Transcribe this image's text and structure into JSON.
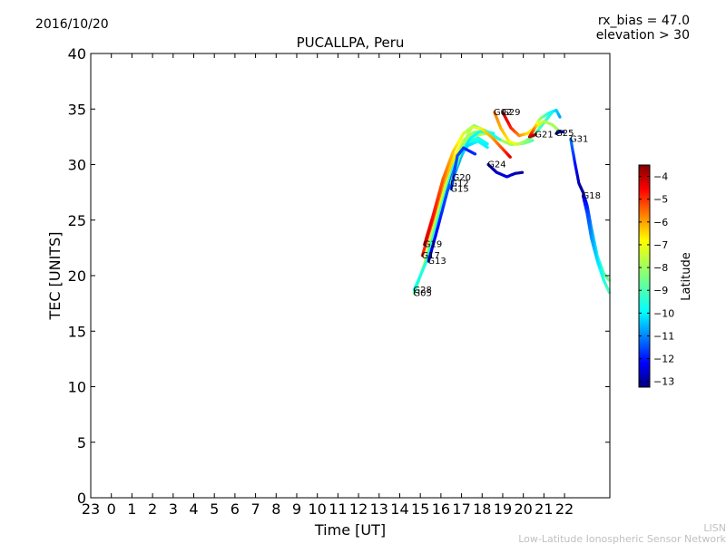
{
  "header": {
    "date": "2016/10/20",
    "rx_bias": "rx_bias = 47.0",
    "elevation": "elevation > 30"
  },
  "credit": {
    "line1": "LISN",
    "line2": "Low-Latitude Ionospheric Sensor Network"
  },
  "chart_data": {
    "type": "scatter",
    "title": "PUCALLPA, Peru",
    "xlabel": "Time [UT]",
    "ylabel": "TEC [UNITS]",
    "xlim": [
      -1,
      24.2
    ],
    "ylim": [
      0,
      40
    ],
    "x_ticks": [
      -1,
      0,
      1,
      2,
      3,
      4,
      5,
      6,
      7,
      8,
      9,
      10,
      11,
      12,
      13,
      14,
      15,
      16,
      17,
      18,
      19,
      20,
      21,
      22
    ],
    "x_tick_labels": [
      "23",
      "0",
      "1",
      "2",
      "3",
      "4",
      "5",
      "6",
      "7",
      "8",
      "9",
      "10",
      "11",
      "12",
      "13",
      "14",
      "15",
      "16",
      "17",
      "18",
      "19",
      "20",
      "21",
      "22"
    ],
    "y_ticks": [
      0,
      5,
      10,
      15,
      20,
      25,
      30,
      35,
      40
    ],
    "y_tick_labels": [
      "0",
      "5",
      "10",
      "15",
      "20",
      "25",
      "30",
      "35",
      "40"
    ],
    "grid": false,
    "colorbar": {
      "label": "Latitude",
      "range": [
        -13.25,
        -3.5
      ],
      "ticks": [
        -4,
        -5,
        -6,
        -7,
        -8,
        -9,
        -10,
        -11,
        -12,
        -13
      ],
      "tick_labels": [
        "−4",
        "−5",
        "−6",
        "−7",
        "−8",
        "−9",
        "−10",
        "−11",
        "−12",
        "−13"
      ],
      "colormap": "jet"
    },
    "series": [
      {
        "name": "G05",
        "points": [
          [
            14.7,
            18.4,
            -8.6
          ],
          [
            15.2,
            21.0,
            -7.9
          ],
          [
            15.8,
            25.5,
            -7.7
          ],
          [
            16.4,
            29.5,
            -7.6
          ],
          [
            17.0,
            31.8,
            -7.6
          ],
          [
            17.6,
            32.6,
            -7.7
          ],
          [
            18.2,
            32.8,
            -7.8
          ],
          [
            18.8,
            32.3,
            -7.9
          ],
          [
            19.4,
            31.8,
            -8.1
          ],
          [
            20.0,
            31.9,
            -8.4
          ],
          [
            20.5,
            32.2,
            -8.8
          ]
        ]
      },
      {
        "name": "G28",
        "points": [
          [
            14.7,
            18.7,
            -9.5
          ],
          [
            15.3,
            21.3,
            -9.2
          ],
          [
            16.0,
            26.0,
            -9.1
          ],
          [
            16.6,
            29.8,
            -9.0
          ],
          [
            17.2,
            31.9,
            -9.1
          ],
          [
            17.8,
            32.4,
            -9.3
          ],
          [
            18.3,
            31.8,
            -9.7
          ]
        ]
      },
      {
        "name": "G17",
        "points": [
          [
            15.1,
            21.8,
            -5.0
          ],
          [
            15.6,
            25.0,
            -5.4
          ],
          [
            16.1,
            28.3,
            -6.1
          ],
          [
            16.6,
            30.5,
            -6.9
          ],
          [
            17.1,
            32.2,
            -7.6
          ],
          [
            17.6,
            32.9,
            -8.3
          ],
          [
            18.1,
            33.0,
            -8.9
          ],
          [
            18.6,
            32.8,
            -9.4
          ]
        ]
      },
      {
        "name": "G19",
        "points": [
          [
            15.2,
            22.8,
            -4.2
          ],
          [
            15.6,
            25.3,
            -4.8
          ],
          [
            16.1,
            28.7,
            -5.6
          ],
          [
            16.6,
            31.2,
            -6.6
          ],
          [
            17.1,
            32.8,
            -7.5
          ],
          [
            17.6,
            33.5,
            -8.4
          ],
          [
            18.1,
            33.1,
            -9.2
          ],
          [
            18.6,
            32.6,
            -9.9
          ]
        ]
      },
      {
        "name": "G13",
        "points": [
          [
            15.4,
            21.3,
            -12.6
          ],
          [
            15.8,
            24.0,
            -12.0
          ],
          [
            16.3,
            27.5,
            -11.3
          ],
          [
            16.8,
            30.5,
            -10.6
          ],
          [
            17.3,
            31.7,
            -10.0
          ],
          [
            17.8,
            32.1,
            -9.6
          ],
          [
            18.3,
            31.5,
            -9.7
          ]
        ]
      },
      {
        "name": "G20",
        "points": [
          [
            16.6,
            28.8,
            -10.8
          ],
          [
            17.0,
            30.8,
            -10.2
          ],
          [
            17.4,
            32.3,
            -9.7
          ],
          [
            17.9,
            33.0,
            -9.4
          ],
          [
            18.4,
            32.8,
            -9.3
          ],
          [
            18.9,
            32.2,
            -9.3
          ]
        ]
      },
      {
        "name": "G12",
        "points": [
          [
            16.5,
            28.3,
            -9.0
          ],
          [
            17.0,
            31.5,
            -8.3
          ],
          [
            17.5,
            33.4,
            -7.7
          ],
          [
            18.0,
            33.2,
            -7.0
          ],
          [
            18.5,
            32.4,
            -6.3
          ],
          [
            19.0,
            31.4,
            -5.4
          ],
          [
            19.4,
            30.6,
            -4.3
          ]
        ]
      },
      {
        "name": "G15",
        "points": [
          [
            16.5,
            27.8,
            -11.5
          ],
          [
            16.8,
            30.8,
            -11.3
          ],
          [
            17.1,
            31.5,
            -11.5
          ],
          [
            17.4,
            31.2,
            -11.8
          ],
          [
            17.7,
            30.9,
            -11.6
          ]
        ]
      },
      {
        "name": "G24",
        "points": [
          [
            18.3,
            30.0,
            -13.0
          ],
          [
            18.7,
            29.3,
            -12.6
          ],
          [
            19.2,
            28.9,
            -12.3
          ],
          [
            19.6,
            29.2,
            -12.7
          ],
          [
            20.0,
            29.3,
            -13.0
          ]
        ]
      },
      {
        "name": "G02",
        "points": [
          [
            18.6,
            34.7,
            -5.8
          ],
          [
            18.9,
            33.3,
            -6.4
          ],
          [
            19.3,
            32.1,
            -7.0
          ],
          [
            19.7,
            31.8,
            -7.6
          ],
          [
            20.1,
            32.1,
            -8.2
          ],
          [
            20.5,
            32.6,
            -8.6
          ],
          [
            20.8,
            33.3,
            -8.9
          ],
          [
            21.1,
            34.0,
            -9.2
          ],
          [
            21.4,
            34.7,
            -9.4
          ]
        ]
      },
      {
        "name": "G29",
        "points": [
          [
            19.0,
            34.7,
            -4.0
          ],
          [
            19.4,
            33.3,
            -5.0
          ],
          [
            19.8,
            32.6,
            -6.0
          ],
          [
            20.2,
            32.8,
            -6.8
          ],
          [
            20.6,
            33.4,
            -7.4
          ],
          [
            21.0,
            33.9,
            -7.8
          ],
          [
            21.4,
            33.6,
            -8.0
          ],
          [
            21.7,
            33.1,
            -8.1
          ]
        ]
      },
      {
        "name": "G21",
        "points": [
          [
            20.6,
            32.7,
            -3.9
          ],
          [
            20.3,
            32.5,
            -4.0
          ],
          [
            20.8,
            34.1,
            -8.0
          ],
          [
            21.2,
            34.6,
            -9.2
          ],
          [
            21.6,
            34.9,
            -10.0
          ],
          [
            21.8,
            34.2,
            -10.5
          ]
        ]
      },
      {
        "name": "G25",
        "points": [
          [
            21.6,
            32.8,
            -13.1
          ],
          [
            21.8,
            33.0,
            -13.2
          ],
          [
            22.0,
            32.9,
            -13.2
          ]
        ]
      },
      {
        "name": "G31",
        "points": [
          [
            22.3,
            32.3,
            -10.8
          ],
          [
            22.5,
            30.2,
            -11.8
          ],
          [
            22.7,
            28.3,
            -12.8
          ],
          [
            22.9,
            27.5,
            -13.0
          ],
          [
            23.1,
            26.3,
            -11.8
          ],
          [
            23.3,
            24.3,
            -10.6
          ],
          [
            23.6,
            21.7,
            -9.6
          ],
          [
            23.9,
            20.2,
            -8.9
          ],
          [
            24.2,
            19.5,
            -8.4
          ]
        ]
      },
      {
        "name": "G18",
        "points": [
          [
            22.9,
            27.2,
            -12.3
          ],
          [
            23.1,
            25.6,
            -11.4
          ],
          [
            23.3,
            23.4,
            -10.6
          ],
          [
            23.6,
            21.3,
            -9.9
          ],
          [
            23.9,
            19.6,
            -9.3
          ],
          [
            24.2,
            18.4,
            -8.8
          ]
        ]
      }
    ]
  }
}
